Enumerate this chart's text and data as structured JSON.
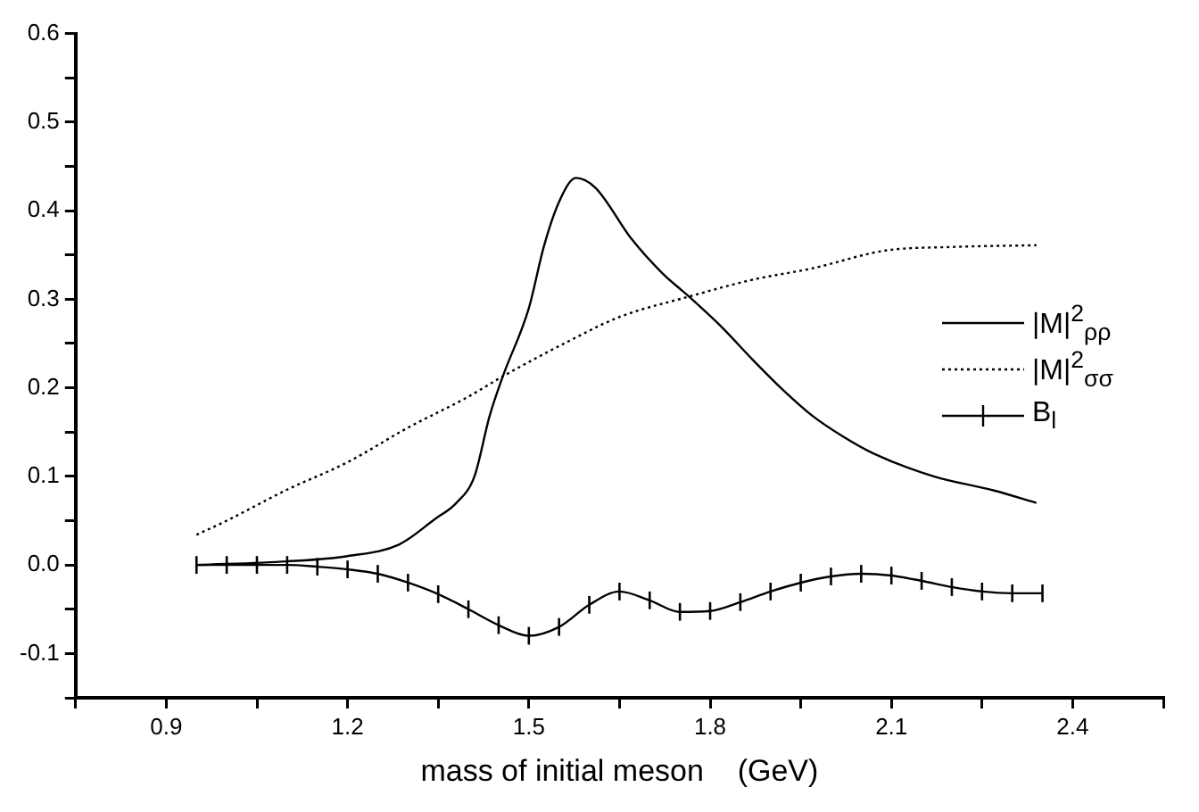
{
  "chart_data": {
    "type": "line",
    "xlabel": "mass of initial meson    (GeV)",
    "xlim": [
      0.75,
      2.55
    ],
    "xticks": [
      {
        "value": 0.75,
        "label": null
      },
      0.9,
      {
        "value": 1.05,
        "label": null
      },
      1.2,
      {
        "value": 1.35,
        "label": null
      },
      1.5,
      {
        "value": 1.65,
        "label": null
      },
      1.8,
      {
        "value": 1.95,
        "label": null
      },
      2.1,
      {
        "value": 2.25,
        "label": null
      },
      2.4,
      {
        "value": 2.55,
        "label": null
      }
    ],
    "ylim": [
      -0.15,
      0.6
    ],
    "yticks": [
      {
        "value": -0.15,
        "label": null
      },
      -0.1,
      {
        "value": -0.05,
        "label": null
      },
      {
        "value": 0,
        "label": "0.0"
      },
      {
        "value": 0.05,
        "label": null
      },
      0.1,
      {
        "value": 0.15,
        "label": null
      },
      0.2,
      {
        "value": 0.25,
        "label": null
      },
      0.3,
      {
        "value": 0.35,
        "label": null
      },
      0.4,
      {
        "value": 0.45,
        "label": null
      },
      0.5,
      {
        "value": 0.55,
        "label": null
      },
      0.6
    ],
    "grid": false,
    "legend": "right",
    "marker": "none",
    "series": [
      {
        "name": "|M|$^{2}$$_{ρρ}$",
        "color": "#000000",
        "line_style": "solid",
        "x": [
          0.95,
          1.1,
          1.2,
          1.285,
          1.345,
          1.38,
          1.41,
          1.435,
          1.457,
          1.5,
          1.525,
          1.55,
          1.578,
          1.61,
          1.67,
          1.72,
          1.765,
          1.82,
          1.87,
          1.92,
          1.97,
          2.02,
          2.07,
          2.17,
          2.27,
          2.34
        ],
        "values": [
          0.0,
          0.004,
          0.01,
          0.023,
          0.052,
          0.07,
          0.1,
          0.168,
          0.213,
          0.29,
          0.36,
          0.41,
          0.437,
          0.426,
          0.368,
          0.33,
          0.303,
          0.268,
          0.232,
          0.198,
          0.168,
          0.145,
          0.126,
          0.1,
          0.084,
          0.07
        ]
      },
      {
        "name": "|M|$^{2}$$_{σσ}$",
        "color": "#000000",
        "line_style": "dotted",
        "x": [
          0.95,
          1.0,
          1.1,
          1.2,
          1.3,
          1.4,
          1.457,
          1.567,
          1.65,
          1.765,
          1.87,
          1.97,
          2.09,
          2.2,
          2.34
        ],
        "values": [
          0.034,
          0.05,
          0.085,
          0.116,
          0.155,
          0.19,
          0.213,
          0.253,
          0.28,
          0.303,
          0.322,
          0.335,
          0.355,
          0.359,
          0.361
        ]
      },
      {
        "name": "B$_{l}$",
        "color": "#000000",
        "line_style": "solid",
        "x": [
          0.95,
          1.0,
          1.05,
          1.1,
          1.15,
          1.2,
          1.25,
          1.3,
          1.35,
          1.4,
          1.45,
          1.5,
          1.55,
          1.6,
          1.65,
          1.7,
          1.75,
          1.8,
          1.85,
          1.9,
          1.95,
          2.0,
          2.05,
          2.1,
          2.15,
          2.2,
          2.25,
          2.3,
          2.35
        ],
        "values": [
          0.0,
          0.0,
          0.0,
          0.0,
          -0.002,
          -0.005,
          -0.01,
          -0.02,
          -0.033,
          -0.05,
          -0.068,
          -0.08,
          -0.07,
          -0.045,
          -0.03,
          -0.04,
          -0.053,
          -0.052,
          -0.042,
          -0.03,
          -0.02,
          -0.013,
          -0.01,
          -0.012,
          -0.018,
          -0.025,
          -0.03,
          -0.032,
          -0.032
        ],
        "errors": [
          0.01,
          0.01,
          0.01,
          0.01,
          0.01,
          0.01,
          0.01,
          0.01,
          0.01,
          0.01,
          0.01,
          0.01,
          0.01,
          0.01,
          0.01,
          0.01,
          0.01,
          0.01,
          0.01,
          0.01,
          0.01,
          0.01,
          0.01,
          0.01,
          0.01,
          0.01,
          0.01,
          0.01,
          0.01
        ]
      }
    ]
  }
}
